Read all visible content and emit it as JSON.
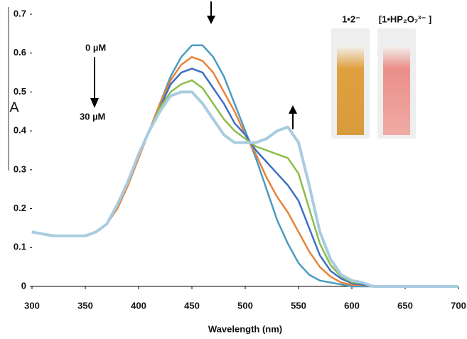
{
  "chart_data": {
    "type": "line",
    "y_label": "A",
    "x_label": "Wavelength (nm)",
    "annotations": {
      "start": "0 µM",
      "end": "30 µM",
      "photo_left": "1•2⁻",
      "photo_right": "[1•HP₂O₇³⁻ ]"
    },
    "x": [
      300,
      310,
      320,
      330,
      340,
      350,
      360,
      370,
      380,
      390,
      400,
      410,
      420,
      430,
      440,
      450,
      460,
      470,
      480,
      490,
      500,
      510,
      520,
      530,
      540,
      550,
      560,
      570,
      580,
      590,
      600,
      610,
      620,
      630,
      640,
      650,
      660,
      670,
      680,
      690,
      700
    ],
    "series": [
      {
        "color": "#4a9bc1",
        "values": [
          0.14,
          0.135,
          0.13,
          0.13,
          0.13,
          0.13,
          0.14,
          0.16,
          0.2,
          0.26,
          0.33,
          0.4,
          0.47,
          0.54,
          0.59,
          0.62,
          0.62,
          0.59,
          0.54,
          0.47,
          0.4,
          0.33,
          0.25,
          0.17,
          0.11,
          0.06,
          0.03,
          0.015,
          0.01,
          0.005,
          0,
          0,
          0,
          0,
          0,
          0,
          0,
          0,
          0,
          0,
          0
        ]
      },
      {
        "color": "#e8833a",
        "values": [
          0.14,
          0.135,
          0.13,
          0.13,
          0.13,
          0.13,
          0.14,
          0.16,
          0.2,
          0.26,
          0.33,
          0.4,
          0.47,
          0.53,
          0.57,
          0.59,
          0.58,
          0.55,
          0.5,
          0.45,
          0.39,
          0.34,
          0.28,
          0.23,
          0.19,
          0.14,
          0.09,
          0.05,
          0.025,
          0.01,
          0.004,
          0.003,
          0,
          0,
          0,
          0,
          0,
          0,
          0,
          0,
          0
        ]
      },
      {
        "color": "#3f6fc4",
        "values": [
          0.14,
          0.135,
          0.13,
          0.13,
          0.13,
          0.13,
          0.14,
          0.16,
          0.21,
          0.27,
          0.34,
          0.4,
          0.46,
          0.52,
          0.55,
          0.56,
          0.55,
          0.51,
          0.47,
          0.42,
          0.39,
          0.35,
          0.32,
          0.29,
          0.26,
          0.22,
          0.15,
          0.08,
          0.04,
          0.02,
          0.008,
          0.005,
          0,
          0,
          0,
          0,
          0,
          0,
          0,
          0,
          0
        ]
      },
      {
        "color": "#8bbd4a",
        "values": [
          0.14,
          0.135,
          0.13,
          0.13,
          0.13,
          0.13,
          0.14,
          0.16,
          0.21,
          0.27,
          0.34,
          0.4,
          0.46,
          0.5,
          0.52,
          0.53,
          0.51,
          0.47,
          0.43,
          0.4,
          0.38,
          0.36,
          0.35,
          0.34,
          0.33,
          0.29,
          0.2,
          0.11,
          0.055,
          0.025,
          0.011,
          0.008,
          0,
          0,
          0,
          0,
          0,
          0,
          0,
          0,
          0
        ]
      },
      {
        "color": "#a8cce0",
        "values": [
          0.14,
          0.135,
          0.13,
          0.13,
          0.13,
          0.13,
          0.14,
          0.16,
          0.21,
          0.27,
          0.34,
          0.4,
          0.45,
          0.49,
          0.5,
          0.5,
          0.47,
          0.43,
          0.39,
          0.37,
          0.37,
          0.37,
          0.38,
          0.4,
          0.41,
          0.37,
          0.26,
          0.14,
          0.07,
          0.03,
          0.015,
          0.01,
          0,
          0,
          0,
          0,
          0,
          0,
          0,
          0,
          0
        ]
      }
    ],
    "xlim": [
      300,
      700
    ],
    "xticks": [
      300,
      350,
      400,
      450,
      500,
      550,
      600,
      650,
      700
    ],
    "ylim": [
      0,
      0.7
    ],
    "yticks": [
      0,
      0.1,
      0.2,
      0.3,
      0.4,
      0.5,
      0.6,
      0.7
    ]
  }
}
